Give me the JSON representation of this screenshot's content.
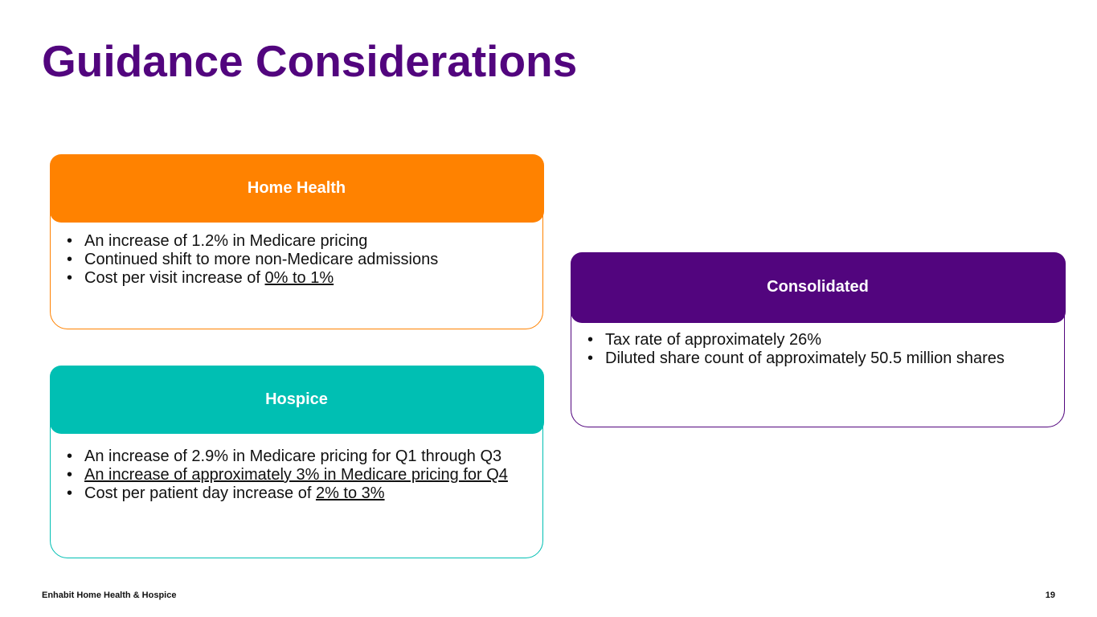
{
  "title": "Guidance Considerations",
  "colors": {
    "title": "#52057e",
    "home_health": "#ff8200",
    "hospice": "#00bfb3",
    "consolidated": "#52057e"
  },
  "home_health": {
    "header": "Home Health",
    "bullets": [
      {
        "text": "An increase of 1.2% in Medicare pricing",
        "underlined": ""
      },
      {
        "text": "Continued shift to more non-Medicare admissions",
        "underlined": ""
      },
      {
        "text": "Cost per visit increase of ",
        "underlined": "0% to 1%"
      }
    ]
  },
  "hospice": {
    "header": "Hospice",
    "bullets": [
      {
        "text": "An increase of 2.9% in Medicare pricing for Q1 through Q3",
        "underlined": ""
      },
      {
        "text": "",
        "underlined": "An increase of approximately 3% in Medicare pricing for Q4"
      },
      {
        "text": "Cost per patient day increase of ",
        "underlined": "2% to 3%"
      }
    ]
  },
  "consolidated": {
    "header": "Consolidated",
    "bullets": [
      {
        "text": "Tax rate of approximately 26%",
        "underlined": ""
      },
      {
        "text": "Diluted share count of approximately 50.5 million shares",
        "underlined": ""
      }
    ]
  },
  "footer": {
    "company": "Enhabit Home Health & Hospice",
    "page": "19"
  }
}
